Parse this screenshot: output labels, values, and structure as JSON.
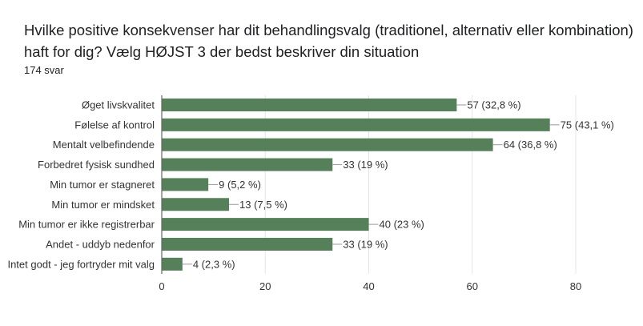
{
  "title": "Hvilke positive konsekvenser har dit behandlingsvalg (traditionel, alternativ eller kombination) haft for dig? Vælg HØJST 3 der bedst beskriver din situation",
  "response_count": "174 svar",
  "colors": {
    "bar": "#55805a",
    "grid": "#e6e6e6",
    "axis": "#666666",
    "text": "#333333"
  },
  "chart_data": {
    "type": "bar",
    "orientation": "horizontal",
    "categories": [
      "Øget livskvalitet",
      "Følelse af kontrol",
      "Mentalt velbefindende",
      "Forbedret fysisk sundhed",
      "Min tumor er stagneret",
      "Min tumor er mindsket",
      "Min tumor er ikke registrerbar",
      "Andet - uddyb nedenfor",
      "Intet godt - jeg fortryder mit valg"
    ],
    "values": [
      57,
      75,
      64,
      33,
      9,
      13,
      40,
      33,
      4
    ],
    "data_labels": [
      "57 (32,8 %)",
      "75 (43,1 %)",
      "64 (36,8 %)",
      "33 (19 %)",
      "9 (5,2 %)",
      "13 (7,5 %)",
      "40 (23 %)",
      "33 (19 %)",
      "4 (2,3 %)"
    ],
    "xlim": [
      0,
      80
    ],
    "xticks": [
      "0",
      "20",
      "40",
      "60",
      "80"
    ],
    "xtick_values": [
      0,
      20,
      40,
      60,
      80
    ],
    "grid": true
  }
}
